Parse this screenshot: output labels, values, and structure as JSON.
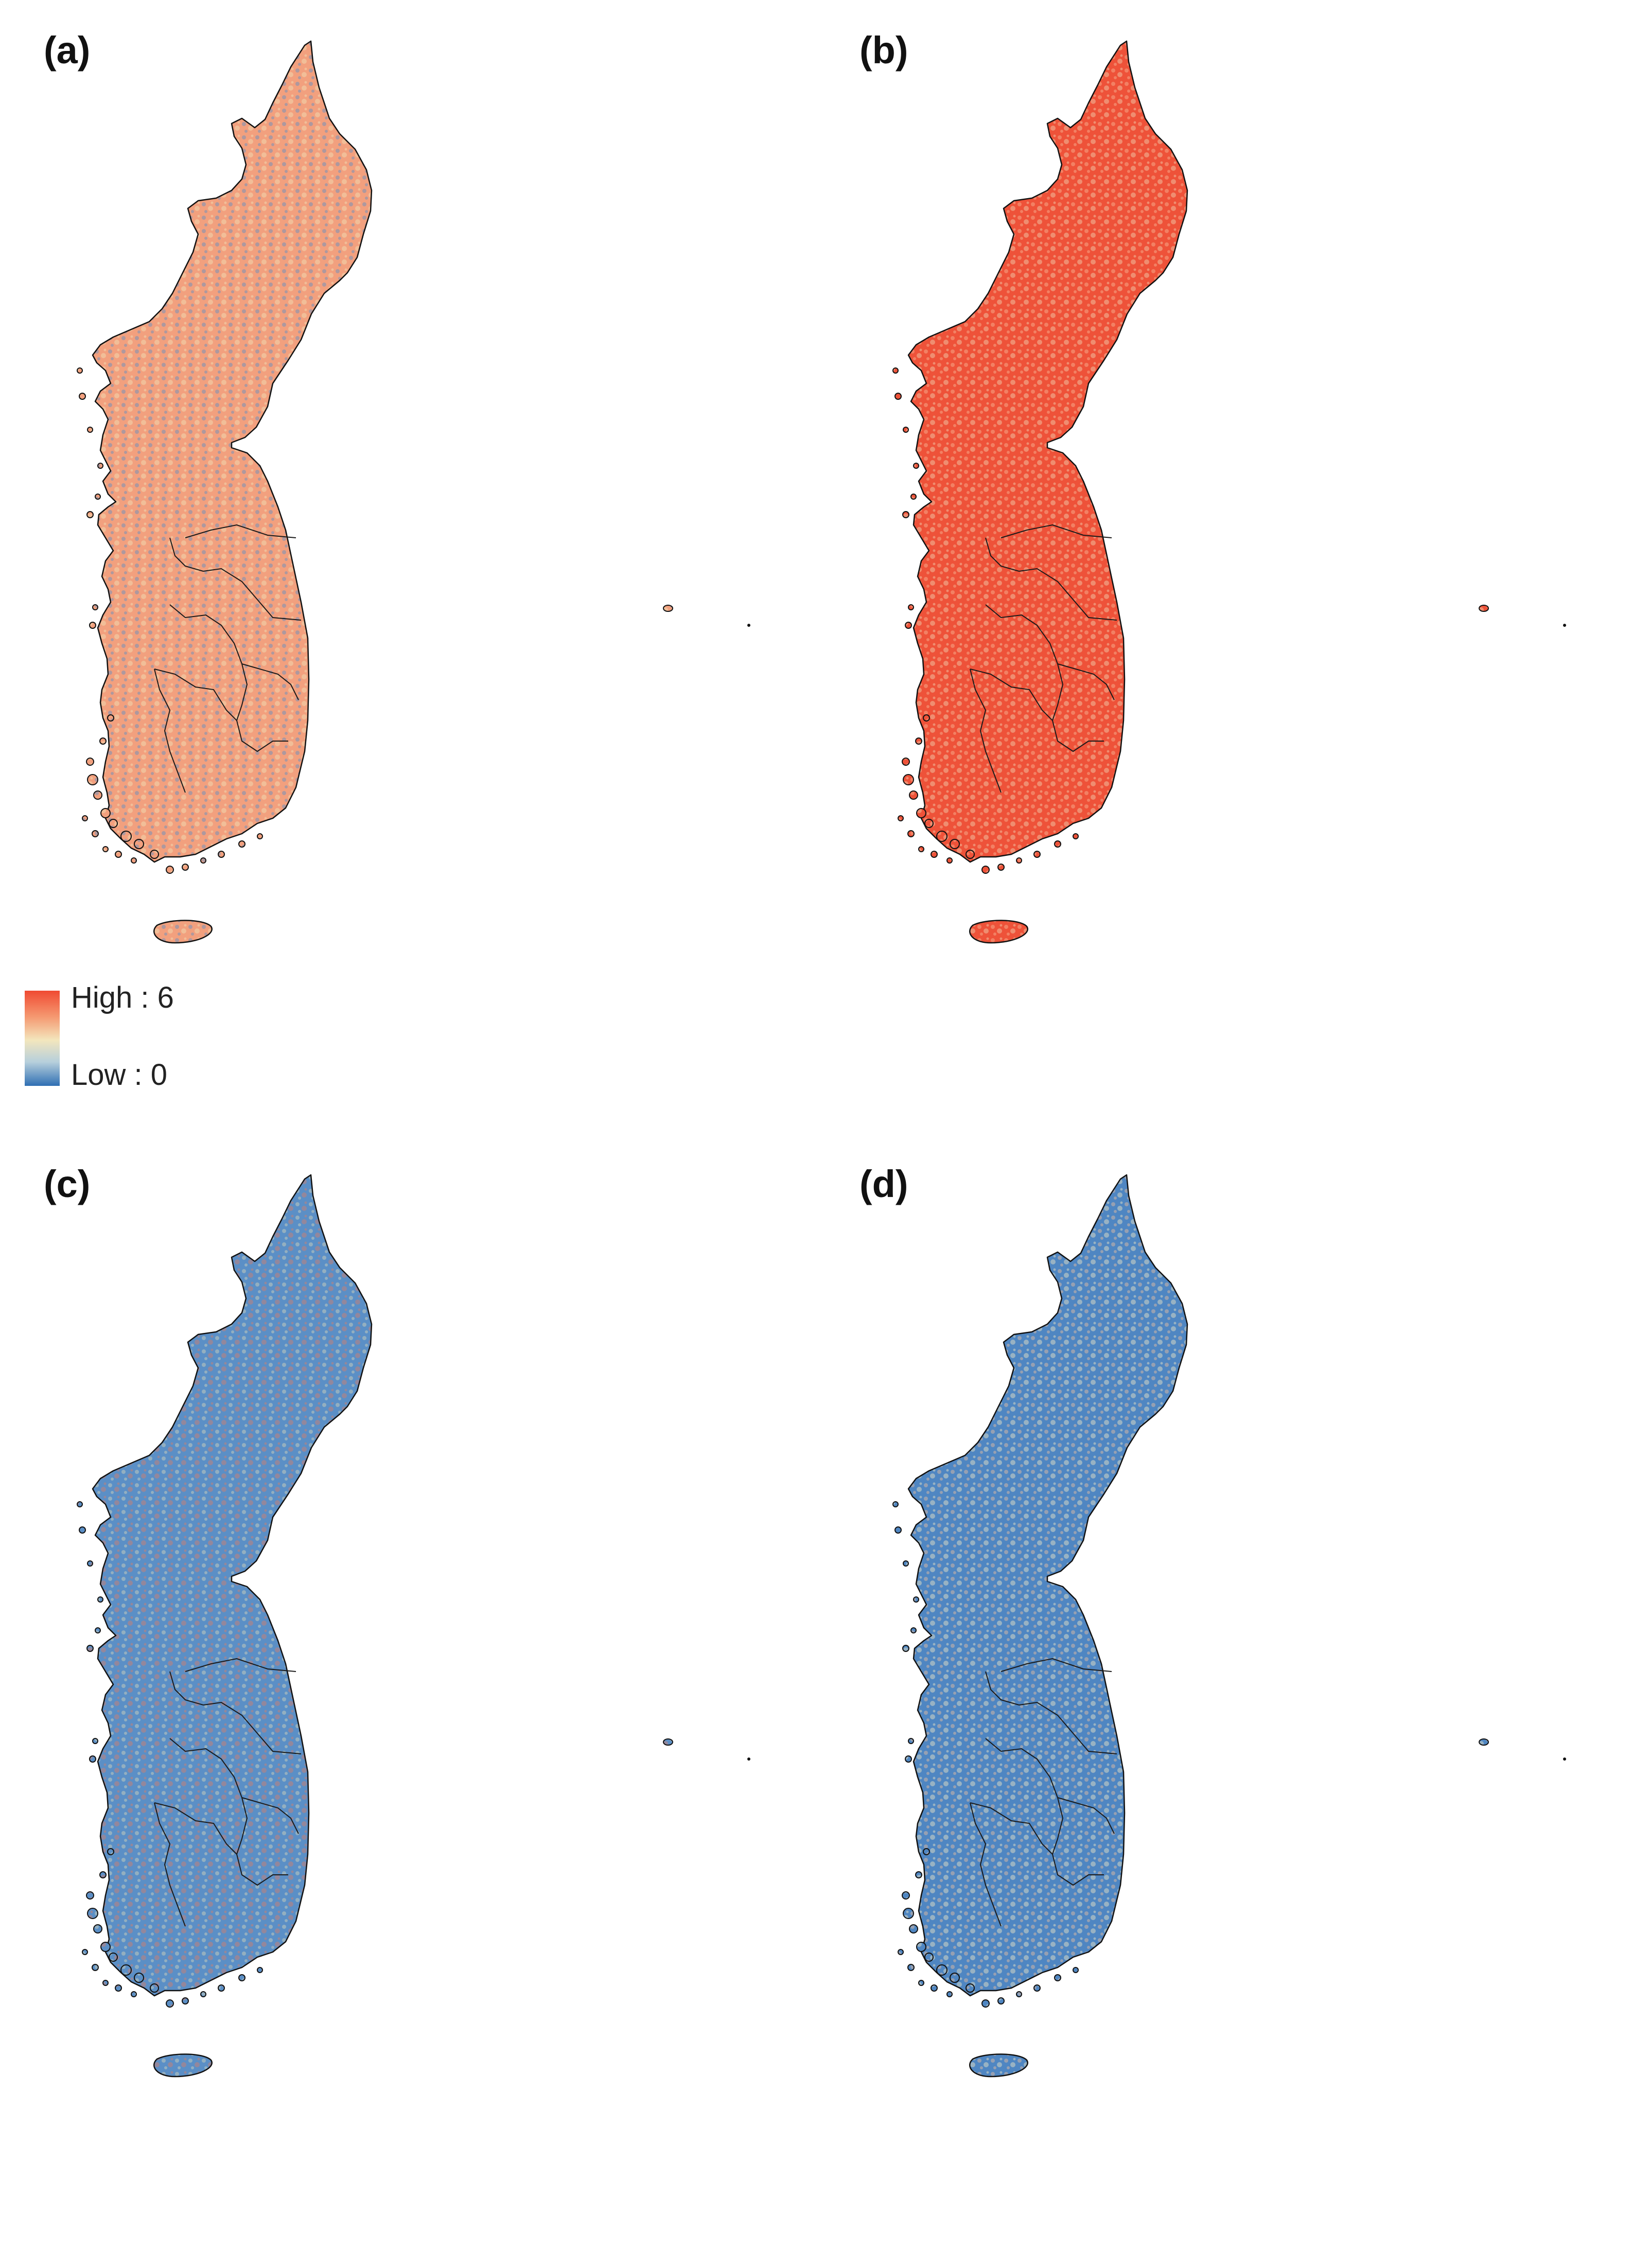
{
  "panels": [
    {
      "label": "(a)",
      "fill": "#f2a07e",
      "texture": "#5b8fc6",
      "texture2": "#f1e2b8",
      "texture_opacity": 0.45
    },
    {
      "label": "(b)",
      "fill": "#ee5239",
      "texture": "#f7c6a3",
      "texture2": "#f0e6c4",
      "texture_opacity": 0.4
    },
    {
      "label": "(c)",
      "fill": "#5b8fc6",
      "texture": "#e6dfb6",
      "texture2": "#e77a5c",
      "texture_opacity": 0.4
    },
    {
      "label": "(d)",
      "fill": "#4f86c2",
      "texture": "#eebf9d",
      "texture2": "#f3e6c3",
      "texture_opacity": 0.45
    }
  ],
  "legend": {
    "high": "High : 6",
    "low": "Low : 0",
    "color_high": "#f04a32",
    "color_mid": "#f3e6bd",
    "color_low": "#2f6fb3"
  }
}
